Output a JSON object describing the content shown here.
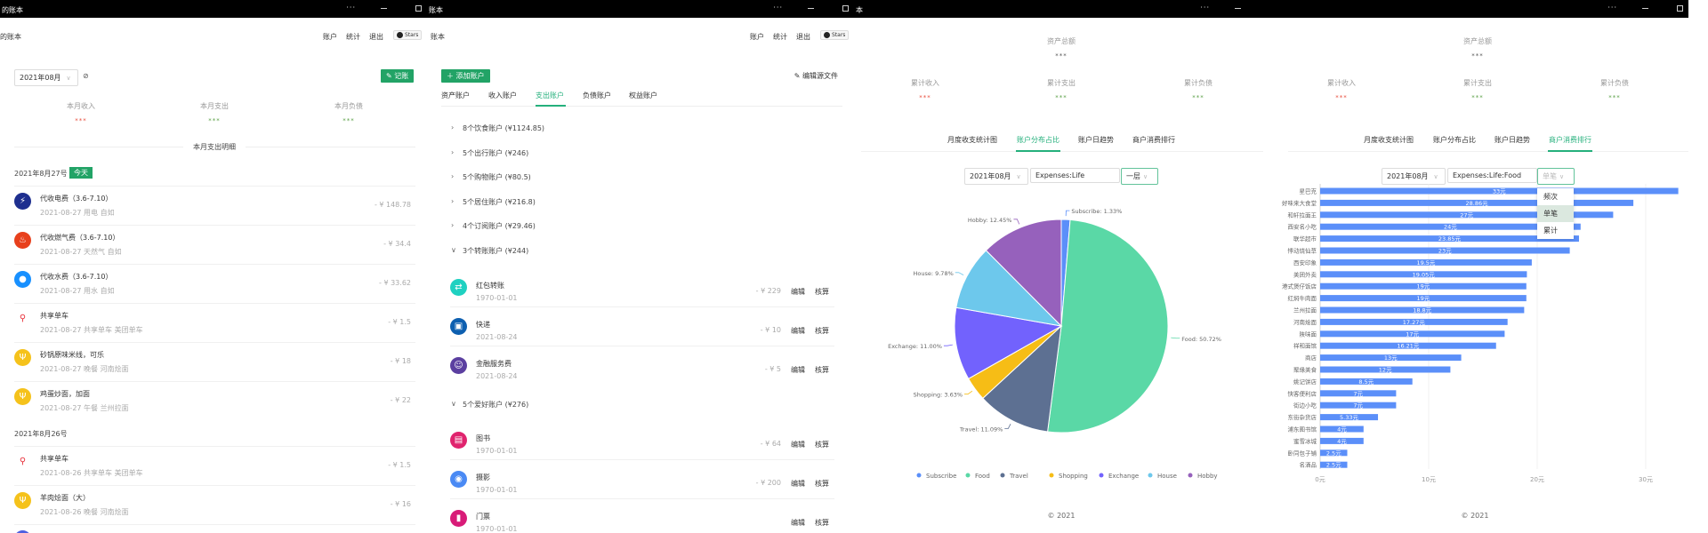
{
  "colors": {
    "accent": "#22a366",
    "income": "#e74c3c",
    "expense": "#5aa046"
  },
  "nav": {
    "accounts": "账户",
    "stats": "统计",
    "logout": "退出",
    "stars": "Stars"
  },
  "home": {
    "window_title": "的账本",
    "app_title": "的账本",
    "month": "2021年08月",
    "record_label": "记账",
    "summary": [
      {
        "label": "本月收入",
        "value": "***"
      },
      {
        "label": "本月支出",
        "value": "***"
      },
      {
        "label": "本月负债",
        "value": "***"
      }
    ],
    "section_title": "本月支出明细",
    "today_badge": "今天",
    "days": [
      {
        "date": "2021年8月27号",
        "items": [
          {
            "icon": "lightning-icon",
            "color": "#1e2f8f",
            "title": "代收电费（3.6-7.10）",
            "sub": "2021-08-27 用电 自如",
            "amount": "- ¥ 148.78"
          },
          {
            "icon": "flame-icon",
            "color": "#e8401c",
            "title": "代收燃气费（3.6-7.10）",
            "sub": "2021-08-27 天然气 自如",
            "amount": "- ¥ 34.4"
          },
          {
            "icon": "water-drop-icon",
            "color": "#1890ff",
            "title": "代收水费（3.6-7.10）",
            "sub": "2021-08-27 用水 自如",
            "amount": "- ¥ 33.62"
          },
          {
            "icon": "bicycle-icon",
            "color": "#e8303a",
            "title": "共享单车",
            "sub": "2021-08-27 共享单车 美团单车",
            "amount": "- ¥ 1.5"
          },
          {
            "icon": "fork-knife-icon",
            "color": "#f5c21b",
            "title": "砂锅原味米线，可乐",
            "sub": "2021-08-27 晚餐 河南烩面",
            "amount": "- ¥ 18"
          },
          {
            "icon": "fork-knife-icon",
            "color": "#f5c21b",
            "title": "鸡蛋炒面，加面",
            "sub": "2021-08-27 午餐 兰州拉面",
            "amount": "- ¥ 22"
          }
        ]
      },
      {
        "date": "2021年8月26号",
        "items": [
          {
            "icon": "bicycle-icon",
            "color": "#e8303a",
            "title": "共享单车",
            "sub": "2021-08-26 共享单车 美团单车",
            "amount": "- ¥ 1.5"
          },
          {
            "icon": "fork-knife-icon",
            "color": "#f5c21b",
            "title": "羊肉烩面（大）",
            "sub": "2021-08-26 晚餐 河南烩面",
            "amount": "- ¥ 16"
          }
        ]
      }
    ]
  },
  "accounts": {
    "window_title": "账本",
    "app_title": "账本",
    "add_label": "添加账户",
    "edit_source_label": "编辑源文件",
    "tabs": [
      {
        "label": "资产账户"
      },
      {
        "label": "收入账户"
      },
      {
        "label": "支出账户",
        "active": true
      },
      {
        "label": "负债账户"
      },
      {
        "label": "权益账户"
      }
    ],
    "groups": [
      {
        "label": "8个饮食账户 (¥1124.85)"
      },
      {
        "label": "5个出行账户 (¥246)"
      },
      {
        "label": "5个购物账户 (¥80.5)"
      },
      {
        "label": "5个居住账户 (¥216.8)"
      },
      {
        "label": "4个订阅账户 (¥29.46)"
      },
      {
        "label": "3个转账账户 (¥244)",
        "expanded": true
      }
    ],
    "transfer_items": [
      {
        "icon": "transfer-icon",
        "color": "#1fd1c1",
        "name": "红包转账",
        "date": "1970-01-01",
        "amount": "- ¥ 229"
      },
      {
        "icon": "package-icon",
        "color": "#0d5fb0",
        "name": "快递",
        "date": "2021-08-24",
        "amount": "- ¥ 10"
      },
      {
        "icon": "finance-icon",
        "color": "#5b3fa0",
        "name": "金融服务费",
        "date": "2021-08-24",
        "amount": "- ¥ 5"
      }
    ],
    "hobby_group": {
      "label": "5个爱好账户 (¥276)",
      "expanded": true
    },
    "hobby_items": [
      {
        "icon": "book-icon",
        "color": "#e0246e",
        "name": "图书",
        "date": "1970-01-01",
        "amount": "- ¥ 64"
      },
      {
        "icon": "camera-icon",
        "color": "#4a8af4",
        "name": "摄影",
        "date": "1970-01-01",
        "amount": "- ¥ 200"
      },
      {
        "icon": "ticket-icon",
        "color": "#d81b78",
        "name": "门票",
        "date": "1970-01-01",
        "amount": ""
      }
    ],
    "edit_label": "编辑",
    "reconcile_label": "核算"
  },
  "stats": {
    "total_label": "资产总额",
    "total_value": "***",
    "summary": [
      {
        "label": "累计收入",
        "value": "***"
      },
      {
        "label": "累计支出",
        "value": "***"
      },
      {
        "label": "累计负债",
        "value": "***"
      }
    ],
    "tabs": [
      "月度收支统计图",
      "账户分布占比",
      "账户日趋势",
      "商户消费排行"
    ],
    "footer": "© 2021",
    "window_title_left": "本"
  },
  "pie_panel": {
    "month": "2021年08月",
    "account": "Expenses:Life",
    "level": "一层",
    "active_tab": 1
  },
  "bar_panel": {
    "month": "2021年08月",
    "account": "Expenses:Life:Food",
    "mode": "单笔",
    "active_tab": 3,
    "dropdown": [
      {
        "label": "频次"
      },
      {
        "label": "单笔",
        "selected": true
      },
      {
        "label": "累计"
      }
    ]
  },
  "chart_data": [
    {
      "type": "pie",
      "categories": [
        "Subscribe",
        "Food",
        "Travel",
        "Shopping",
        "Exchange",
        "House",
        "Hobby"
      ],
      "values": [
        1.33,
        50.72,
        11.09,
        3.63,
        11.0,
        9.78,
        12.45
      ],
      "unit": "%",
      "colors": [
        "#5b8ff9",
        "#5ad8a6",
        "#5d7092",
        "#f6bd16",
        "#7262fd",
        "#6dc8ec",
        "#9661bc"
      ],
      "labels": [
        "Subscribe: 1.33%",
        "Food: 50.72%",
        "Travel: 11.09%",
        "Shopping: 3.63%",
        "Exchange: 11.00%",
        "House: 9.78%",
        "Hobby: 12.45%"
      ],
      "legend": "bottom"
    },
    {
      "type": "bar",
      "orientation": "horizontal",
      "categories": [
        "星巴克",
        "好味来大食堂",
        "和轩拉面王",
        "西安名小吃",
        "联华超市",
        "悸动烧仙草",
        "西安印象",
        "美团外卖",
        "港式煲仔饭店",
        "红焖牛肉面",
        "兰州拉面",
        "河南烩面",
        "陕味面",
        "祥和面馆",
        "商店",
        "聚缘美食",
        "姚记饼店",
        "快客便利店",
        "街边小吃",
        "东街杂货店",
        "浦东图书馆",
        "蜜雪冰城",
        "卧同包子铺",
        "名酒品"
      ],
      "values": [
        33,
        28.86,
        27,
        24,
        23.85,
        23,
        19.5,
        19.05,
        19,
        19,
        18.8,
        17.27,
        17,
        16.21,
        13,
        12,
        8.5,
        7,
        7,
        5.33,
        4,
        4,
        2.5,
        2.5
      ],
      "data_labels": [
        "33元",
        "28.86元",
        "27元",
        "24元",
        "23.85元",
        "23元",
        "19.5元",
        "19.05元",
        "19元",
        "19元",
        "18.8元",
        "17.27元",
        "17元",
        "16.21元",
        "13元",
        "12元",
        "8.5元",
        "7元",
        "7元",
        "5.33元",
        "4元",
        "4元",
        "2.5元",
        "2.5元"
      ],
      "x_ticks": [
        "0元",
        "10元",
        "20元",
        "30元"
      ],
      "x_tick_values": [
        0,
        10,
        20,
        30
      ],
      "xlim": [
        0,
        33
      ],
      "grid": true,
      "color": "#5b8ff9"
    }
  ]
}
